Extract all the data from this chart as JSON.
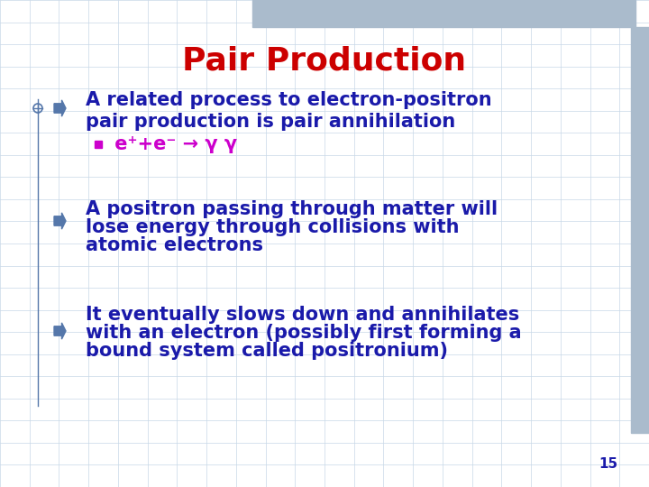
{
  "title": "Pair Production",
  "title_color": "#CC0000",
  "title_fontsize": 26,
  "body_color": "#1a1aaa",
  "magenta_color": "#CC00CC",
  "bullet_color": "#5577aa",
  "bg_color": "#FFFFFF",
  "grid_color": "#c8d8e8",
  "page_number": "15",
  "bullet1_line1": "A related process to electron-positron",
  "bullet1_line2": "pair production is pair annihilation",
  "sub_bullet": " e⁺+e⁻ → γ γ",
  "bullet2_line1": "A positron passing through matter will",
  "bullet2_line2": "lose energy through collisions with",
  "bullet2_line3": "atomic electrons",
  "bullet3_line1": "It eventually slows down and annihilates",
  "bullet3_line2": "with an electron (possibly first forming a",
  "bullet3_line3": "bound system called positronium)",
  "font_size_body": 15,
  "font_size_sub": 15,
  "accent_color": "#aabbcc"
}
